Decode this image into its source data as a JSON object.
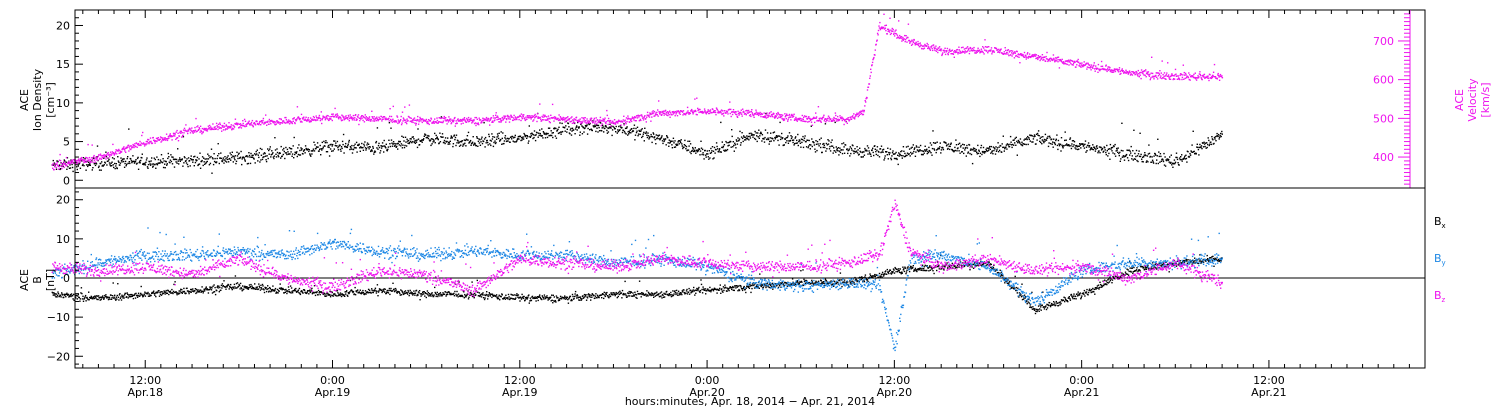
{
  "chart_data": [
    {
      "type": "scatter",
      "name": "upper-panel",
      "y_left": {
        "label_lines": [
          "ACE",
          "Ion Density",
          "[cm⁻³]"
        ],
        "ylim": [
          -1,
          22
        ],
        "ticks": [
          0,
          5,
          10,
          15,
          20
        ],
        "tick_labels": [
          "0",
          "5",
          "10",
          "15",
          "20"
        ]
      },
      "y_right": {
        "label_lines": [
          "ACE",
          "Velocity",
          "[km/s]"
        ],
        "ylim": [
          320,
          780
        ],
        "ticks": [
          400,
          500,
          600,
          700
        ],
        "tick_labels": [
          "400",
          "500",
          "600",
          "700"
        ]
      },
      "series": [
        {
          "name": "Ion Density",
          "axis": "left",
          "color": "#000000",
          "points": [
            [
              "2014-04-18 06:00",
              2.0
            ],
            [
              "2014-04-18 09:00",
              2.3
            ],
            [
              "2014-04-18 12:00",
              2.5
            ],
            [
              "2014-04-18 15:00",
              2.6
            ],
            [
              "2014-04-18 18:00",
              3.0
            ],
            [
              "2014-04-18 21:00",
              3.6
            ],
            [
              "2014-04-19 00:00",
              4.5
            ],
            [
              "2014-04-19 03:00",
              4.2
            ],
            [
              "2014-04-19 06:00",
              5.5
            ],
            [
              "2014-04-19 09:00",
              5.0
            ],
            [
              "2014-04-19 12:00",
              5.5
            ],
            [
              "2014-04-19 15:00",
              6.8
            ],
            [
              "2014-04-19 18:00",
              7.0
            ],
            [
              "2014-04-19 21:00",
              5.5
            ],
            [
              "2014-04-20 00:00",
              3.5
            ],
            [
              "2014-04-20 03:00",
              6.0
            ],
            [
              "2014-04-20 06:00",
              5.0
            ],
            [
              "2014-04-20 09:00",
              4.0
            ],
            [
              "2014-04-20 12:00",
              3.5
            ],
            [
              "2014-04-20 15:00",
              4.5
            ],
            [
              "2014-04-20 18:00",
              3.8
            ],
            [
              "2014-04-20 21:00",
              5.5
            ],
            [
              "2014-04-21 00:00",
              4.5
            ],
            [
              "2014-04-21 03:00",
              3.5
            ],
            [
              "2014-04-21 06:00",
              2.5
            ],
            [
              "2014-04-21 09:00",
              6.0
            ]
          ]
        },
        {
          "name": "Velocity",
          "axis": "right",
          "color": "#ee14ee",
          "points": [
            [
              "2014-04-18 06:00",
              380
            ],
            [
              "2014-04-18 09:00",
              400
            ],
            [
              "2014-04-18 12:00",
              440
            ],
            [
              "2014-04-18 15:00",
              470
            ],
            [
              "2014-04-18 18:00",
              485
            ],
            [
              "2014-04-18 21:00",
              495
            ],
            [
              "2014-04-19 00:00",
              505
            ],
            [
              "2014-04-19 03:00",
              500
            ],
            [
              "2014-04-19 06:00",
              495
            ],
            [
              "2014-04-19 09:00",
              495
            ],
            [
              "2014-04-19 12:00",
              505
            ],
            [
              "2014-04-19 15:00",
              500
            ],
            [
              "2014-04-19 18:00",
              490
            ],
            [
              "2014-04-19 21:00",
              515
            ],
            [
              "2014-04-20 00:00",
              520
            ],
            [
              "2014-04-20 03:00",
              515
            ],
            [
              "2014-04-20 06:00",
              500
            ],
            [
              "2014-04-20 09:00",
              500
            ],
            [
              "2014-04-20 10:00",
              520
            ],
            [
              "2014-04-20 11:00",
              740
            ],
            [
              "2014-04-20 13:00",
              700
            ],
            [
              "2014-04-20 15:00",
              675
            ],
            [
              "2014-04-20 18:00",
              680
            ],
            [
              "2014-04-20 21:00",
              660
            ],
            [
              "2014-04-21 00:00",
              640
            ],
            [
              "2014-04-21 03:00",
              620
            ],
            [
              "2014-04-21 06:00",
              610
            ],
            [
              "2014-04-21 09:00",
              610
            ]
          ]
        }
      ]
    },
    {
      "type": "scatter",
      "name": "lower-panel",
      "y_left": {
        "label_lines": [
          "ACE",
          "B",
          "[nT]"
        ],
        "ylim": [
          -23,
          23
        ],
        "ticks": [
          -20,
          -10,
          0,
          10,
          20
        ],
        "tick_labels": [
          "−20",
          "−10",
          "0",
          "10",
          "20"
        ],
        "zero_line": true
      },
      "legend": {
        "placement": "right",
        "entries": [
          {
            "label": "B",
            "sub": "x",
            "color": "#000000"
          },
          {
            "label": "B",
            "sub": "y",
            "color": "#1e88e5"
          },
          {
            "label": "B",
            "sub": "z",
            "color": "#ee14ee"
          }
        ]
      },
      "series": [
        {
          "name": "Bx",
          "color": "#000000",
          "points": [
            [
              "2014-04-18 06:00",
              -4
            ],
            [
              "2014-04-18 09:00",
              -5
            ],
            [
              "2014-04-18 12:00",
              -4
            ],
            [
              "2014-04-18 15:00",
              -3
            ],
            [
              "2014-04-18 18:00",
              -2
            ],
            [
              "2014-04-18 21:00",
              -3
            ],
            [
              "2014-04-19 00:00",
              -4
            ],
            [
              "2014-04-19 03:00",
              -3
            ],
            [
              "2014-04-19 06:00",
              -4
            ],
            [
              "2014-04-19 09:00",
              -4
            ],
            [
              "2014-04-19 12:00",
              -5
            ],
            [
              "2014-04-19 15:00",
              -5
            ],
            [
              "2014-04-19 18:00",
              -4
            ],
            [
              "2014-04-19 21:00",
              -4
            ],
            [
              "2014-04-20 00:00",
              -3
            ],
            [
              "2014-04-20 03:00",
              -2
            ],
            [
              "2014-04-20 06:00",
              -1
            ],
            [
              "2014-04-20 09:00",
              -1
            ],
            [
              "2014-04-20 12:00",
              2
            ],
            [
              "2014-04-20 15:00",
              3
            ],
            [
              "2014-04-20 18:00",
              4
            ],
            [
              "2014-04-20 21:00",
              -8
            ],
            [
              "2014-04-21 00:00",
              -4
            ],
            [
              "2014-04-21 03:00",
              2
            ],
            [
              "2014-04-21 06:00",
              4
            ],
            [
              "2014-04-21 09:00",
              5
            ]
          ]
        },
        {
          "name": "By",
          "color": "#1e88e5",
          "points": [
            [
              "2014-04-18 06:00",
              1
            ],
            [
              "2014-04-18 09:00",
              4
            ],
            [
              "2014-04-18 12:00",
              6
            ],
            [
              "2014-04-18 15:00",
              6
            ],
            [
              "2014-04-18 18:00",
              7
            ],
            [
              "2014-04-18 21:00",
              6
            ],
            [
              "2014-04-19 00:00",
              9
            ],
            [
              "2014-04-19 03:00",
              7
            ],
            [
              "2014-04-19 06:00",
              6
            ],
            [
              "2014-04-19 09:00",
              7
            ],
            [
              "2014-04-19 12:00",
              6
            ],
            [
              "2014-04-19 15:00",
              6
            ],
            [
              "2014-04-19 18:00",
              4
            ],
            [
              "2014-04-19 21:00",
              5
            ],
            [
              "2014-04-20 00:00",
              3
            ],
            [
              "2014-04-20 03:00",
              -1
            ],
            [
              "2014-04-20 06:00",
              -2
            ],
            [
              "2014-04-20 09:00",
              -1
            ],
            [
              "2014-04-20 11:00",
              -2
            ],
            [
              "2014-04-20 12:00",
              -18
            ],
            [
              "2014-04-20 13:00",
              5
            ],
            [
              "2014-04-20 15:00",
              6
            ],
            [
              "2014-04-20 18:00",
              3
            ],
            [
              "2014-04-20 21:00",
              -6
            ],
            [
              "2014-04-21 00:00",
              2
            ],
            [
              "2014-04-21 03:00",
              4
            ],
            [
              "2014-04-21 06:00",
              4
            ],
            [
              "2014-04-21 09:00",
              5
            ]
          ]
        },
        {
          "name": "Bz",
          "color": "#ee14ee",
          "points": [
            [
              "2014-04-18 06:00",
              3
            ],
            [
              "2014-04-18 09:00",
              2
            ],
            [
              "2014-04-18 12:00",
              3
            ],
            [
              "2014-04-18 15:00",
              1
            ],
            [
              "2014-04-18 18:00",
              5
            ],
            [
              "2014-04-18 21:00",
              0
            ],
            [
              "2014-04-19 00:00",
              -2
            ],
            [
              "2014-04-19 03:00",
              2
            ],
            [
              "2014-04-19 06:00",
              1
            ],
            [
              "2014-04-19 09:00",
              -3
            ],
            [
              "2014-04-19 12:00",
              5
            ],
            [
              "2014-04-19 15:00",
              4
            ],
            [
              "2014-04-19 18:00",
              3
            ],
            [
              "2014-04-19 21:00",
              5
            ],
            [
              "2014-04-20 00:00",
              4
            ],
            [
              "2014-04-20 03:00",
              3
            ],
            [
              "2014-04-20 06:00",
              3
            ],
            [
              "2014-04-20 09:00",
              4
            ],
            [
              "2014-04-20 11:00",
              6
            ],
            [
              "2014-04-20 12:00",
              19
            ],
            [
              "2014-04-20 13:00",
              7
            ],
            [
              "2014-04-20 15:00",
              3
            ],
            [
              "2014-04-20 18:00",
              5
            ],
            [
              "2014-04-20 21:00",
              2
            ],
            [
              "2014-04-21 00:00",
              3
            ],
            [
              "2014-04-21 03:00",
              0
            ],
            [
              "2014-04-21 06:00",
              4
            ],
            [
              "2014-04-21 09:00",
              -1
            ]
          ]
        }
      ]
    }
  ],
  "x_axis": {
    "range": [
      "2014-04-18 07:30",
      "2014-04-21 22:00"
    ],
    "ticks": [
      {
        "t": "2014-04-18 12:00",
        "lines": [
          "12:00",
          "Apr.18"
        ]
      },
      {
        "t": "2014-04-19 00:00",
        "lines": [
          "0:00",
          "Apr.19"
        ]
      },
      {
        "t": "2014-04-19 12:00",
        "lines": [
          "12:00",
          "Apr.19"
        ]
      },
      {
        "t": "2014-04-20 00:00",
        "lines": [
          "0:00",
          "Apr.20"
        ]
      },
      {
        "t": "2014-04-20 12:00",
        "lines": [
          "12:00",
          "Apr.20"
        ]
      },
      {
        "t": "2014-04-21 00:00",
        "lines": [
          "0:00",
          "Apr.21"
        ]
      },
      {
        "t": "2014-04-21 12:00",
        "lines": [
          "12:00",
          "Apr.21"
        ]
      }
    ],
    "title": "hours:minutes, Apr. 18, 2014 − Apr. 21, 2014"
  }
}
